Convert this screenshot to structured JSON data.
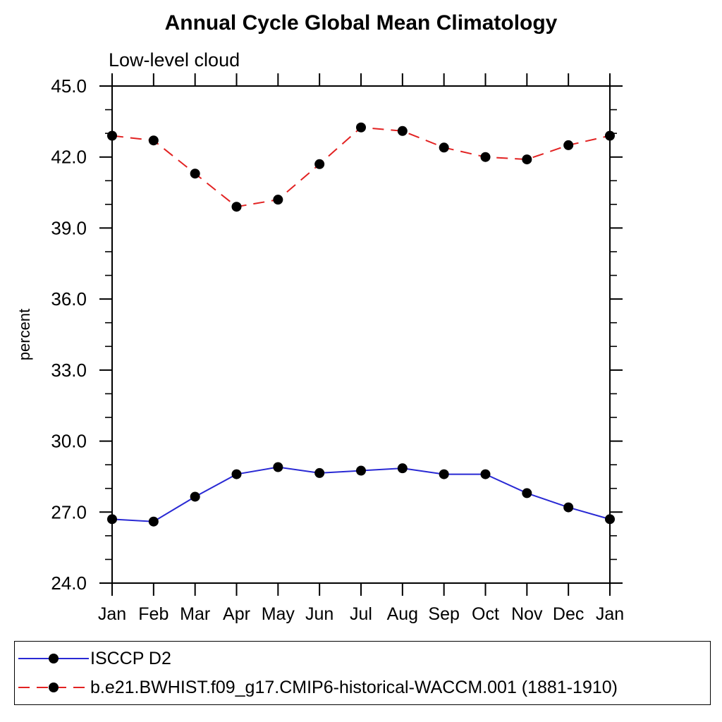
{
  "page": {
    "background": "#ffffff",
    "text_color": "#000000"
  },
  "chart_data": {
    "type": "line",
    "title": "Annual Cycle Global Mean Climatology",
    "subtitle": "Low-level cloud",
    "ylabel": "percent",
    "xlabel": "",
    "categories": [
      "Jan",
      "Feb",
      "Mar",
      "Apr",
      "May",
      "Jun",
      "Jul",
      "Aug",
      "Sep",
      "Oct",
      "Nov",
      "Dec",
      "Jan"
    ],
    "ylim": [
      24.0,
      45.0
    ],
    "ytick_interval": 3.0,
    "yminor_interval": 1.0,
    "ytick_decimals": 1,
    "ytick_labels": [
      "24.0",
      "27.0",
      "30.0",
      "33.0",
      "36.0",
      "39.0",
      "42.0",
      "45.0"
    ],
    "grid": false,
    "legend_position": "bottom",
    "axis_color": "#000000",
    "marker": "filled-circle",
    "marker_color": "#000000",
    "series": [
      {
        "name": "ISCCP D2",
        "color": "#2929d4",
        "line_style": "solid",
        "values": [
          26.7,
          26.6,
          27.65,
          28.6,
          28.9,
          28.65,
          28.75,
          28.85,
          28.6,
          28.6,
          27.8,
          27.2,
          26.7
        ]
      },
      {
        "name": "b.e21.BWHIST.f09_g17.CMIP6-historical-WACCM.001 (1881-1910)",
        "color": "#e22222",
        "line_style": "dashed",
        "values": [
          42.9,
          42.7,
          41.3,
          39.9,
          40.2,
          41.7,
          43.25,
          43.1,
          42.4,
          42.0,
          41.9,
          42.5,
          42.9
        ]
      }
    ]
  }
}
